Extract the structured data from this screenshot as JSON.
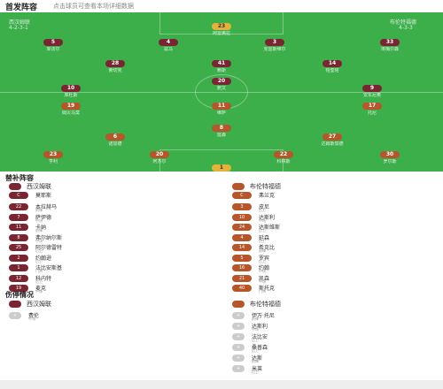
{
  "header": {
    "title": "首发阵容",
    "subtitle": "点击球员可查看本场详细数据"
  },
  "pitch": {
    "home_team": "西汉姆联",
    "away_team": "布伦特福德",
    "home_formation": "4-2-3-1",
    "away_formation": "4-3-3",
    "home_coach": "主教练",
    "away_coach": "主教练",
    "home_players": [
      {
        "num": "23",
        "name": "阿雷奥拉",
        "rating": "",
        "role": "gk"
      },
      {
        "num": "5",
        "name": "库法尔",
        "rating": "",
        "role": ""
      },
      {
        "num": "4",
        "name": "兹马",
        "rating": "",
        "role": ""
      },
      {
        "num": "3",
        "name": "克雷斯维尔",
        "rating": "",
        "role": ""
      },
      {
        "num": "33",
        "name": "埃梅尔森",
        "rating": "",
        "role": ""
      },
      {
        "num": "28",
        "name": "索切克",
        "rating": "",
        "role": ""
      },
      {
        "num": "41",
        "name": "赖斯",
        "rating": "",
        "role": ""
      },
      {
        "num": "14",
        "name": "帕奎塔",
        "rating": "",
        "role": ""
      },
      {
        "num": "10",
        "name": "库杜斯",
        "rating": "",
        "role": ""
      },
      {
        "num": "20",
        "name": "鲍文",
        "rating": "",
        "role": ""
      },
      {
        "num": "9",
        "name": "安东尼奥",
        "rating": "",
        "role": ""
      }
    ],
    "away_players": [
      {
        "num": "1",
        "name": "弗莱肯",
        "rating": "",
        "role": "gk"
      },
      {
        "num": "30",
        "name": "罗尔斯",
        "rating": "",
        "role": ""
      },
      {
        "num": "22",
        "name": "科林斯",
        "rating": "",
        "role": ""
      },
      {
        "num": "20",
        "name": "阿杰尔",
        "rating": "",
        "role": ""
      },
      {
        "num": "23",
        "name": "亨利",
        "rating": "",
        "role": ""
      },
      {
        "num": "6",
        "name": "诺加德",
        "rating": "",
        "role": ""
      },
      {
        "num": "8",
        "name": "延森",
        "rating": "",
        "role": ""
      },
      {
        "num": "27",
        "name": "达姆斯加德",
        "rating": "",
        "role": ""
      },
      {
        "num": "19",
        "name": "姆贝乌莫",
        "rating": "",
        "role": ""
      },
      {
        "num": "11",
        "name": "维萨",
        "rating": "",
        "role": ""
      },
      {
        "num": "17",
        "name": "托尼",
        "rating": "",
        "role": ""
      }
    ]
  },
  "subs_section": {
    "title": "替补阵容",
    "home_team": "西汉姆联",
    "away_team": "布伦特福德",
    "home_coach": "莫耶斯",
    "away_coach": "弗兰克",
    "home_subs": [
      {
        "num": "22",
        "name": "本拉赫马",
        "pos": "前锋",
        "minute": ""
      },
      {
        "num": "7",
        "name": "萨伊德",
        "pos": "中场",
        "minute": ""
      },
      {
        "num": "11",
        "name": "卡纳",
        "pos": "前锋",
        "minute": ""
      },
      {
        "num": "8",
        "name": "弗尔纳尔斯",
        "pos": "中场",
        "minute": ""
      },
      {
        "num": "25",
        "name": "阿尔德雷特",
        "pos": "后卫",
        "minute": ""
      },
      {
        "num": "2",
        "name": "约翰逊",
        "pos": "后卫",
        "minute": ""
      },
      {
        "num": "1",
        "name": "法比安斯基",
        "pos": "门将",
        "minute": ""
      },
      {
        "num": "12",
        "name": "科内特",
        "pos": "后卫",
        "minute": ""
      },
      {
        "num": "19",
        "name": "麦克",
        "pos": "中场",
        "minute": ""
      }
    ],
    "away_subs": [
      {
        "num": "3",
        "name": "皮尼",
        "pos": "后卫",
        "minute": ""
      },
      {
        "num": "10",
        "name": "达斯利",
        "pos": "中场",
        "minute": ""
      },
      {
        "num": "24",
        "name": "达斯维斯",
        "pos": "后卫",
        "minute": ""
      },
      {
        "num": "4",
        "name": "延森",
        "pos": "后卫",
        "minute": ""
      },
      {
        "num": "14",
        "name": "希克比",
        "pos": "前锋",
        "minute": ""
      },
      {
        "num": "5",
        "name": "罗宾",
        "pos": "后卫",
        "minute": ""
      },
      {
        "num": "16",
        "name": "约翰",
        "pos": "中场",
        "minute": ""
      },
      {
        "num": "21",
        "name": "凯森",
        "pos": "中场",
        "minute": ""
      },
      {
        "num": "40",
        "name": "斯托克",
        "pos": "门将",
        "minute": ""
      }
    ]
  },
  "injury_section": {
    "title": "伤停情况",
    "home_team": "西汉姆联",
    "away_team": "布伦特福德",
    "home_injuries": [
      {
        "name": "费伦",
        "pos": "中场"
      }
    ],
    "away_injuries": [
      {
        "name": "伊万·托尼",
        "pos": "前锋"
      },
      {
        "name": "达斯利",
        "pos": "中场"
      },
      {
        "name": "法比安",
        "pos": "后卫"
      },
      {
        "name": "桑普森",
        "pos": "后卫"
      },
      {
        "name": "达斯",
        "pos": "前锋"
      },
      {
        "name": "米莱",
        "pos": "后卫"
      }
    ]
  },
  "colors": {
    "pitch": "#3cae4a",
    "home": "#7a2632",
    "away": "#b5562b",
    "gk": "#e2b33b"
  }
}
